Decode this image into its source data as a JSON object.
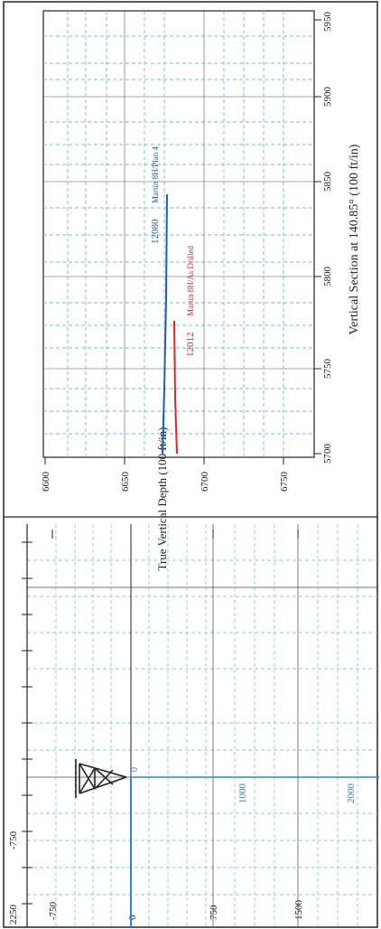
{
  "inset": {
    "vertical_section_label": "Vertical Section at 140.85° (100 ft/in)",
    "tvd_label": "True Vertical Depth (100 ft/in)",
    "vs_ticks": [
      "5700",
      "5750",
      "5800",
      "5850",
      "5900",
      "5950"
    ],
    "tvd_ticks": [
      "6600",
      "6650",
      "6700",
      "6750"
    ],
    "plan": {
      "depth_label": "12080",
      "name": "Martin 8H/Plan 4",
      "color": "#1f5fa8"
    },
    "drilled": {
      "depth_label": "12012",
      "name": "Martin 8H/As Drilled",
      "color": "#d8262e"
    }
  },
  "main": {
    "ticks": [
      "-750",
      "0",
      "750",
      "1500",
      "2250"
    ],
    "md_labels": [
      "0",
      "1000",
      "2000"
    ],
    "accent": "#3a7fd0",
    "grid": "#8fc7e6"
  }
}
